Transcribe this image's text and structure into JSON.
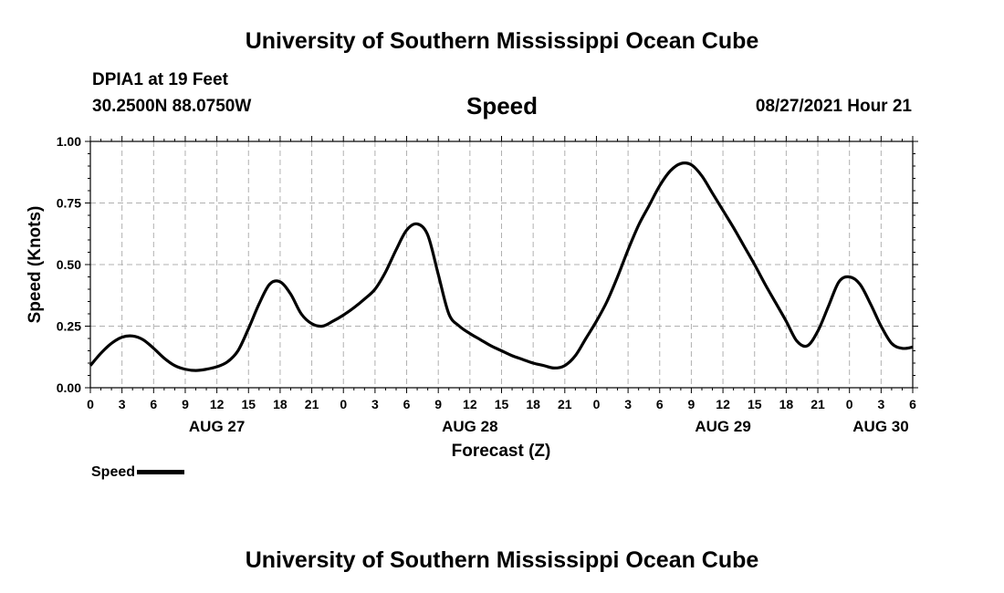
{
  "header": {
    "title": "University of Southern Mississippi Ocean Cube",
    "station": "DPIA1 at 19 Feet",
    "coordinates": "30.2500N  88.0750W",
    "timestamp": "08/27/2021 Hour 21"
  },
  "footer": {
    "title": "University of Southern Mississippi Ocean Cube"
  },
  "legend": {
    "label": "Speed"
  },
  "chart_data": {
    "type": "line",
    "title": "Speed",
    "xlabel": "Forecast (Z)",
    "ylabel": "Speed (Knots)",
    "xlim": [
      0,
      78
    ],
    "ylim": [
      0,
      1
    ],
    "grid": true,
    "legend_position": "bottom-left",
    "y_ticks": [
      "0.00",
      "0.25",
      "0.50",
      "0.75",
      "1.00"
    ],
    "x_tick_labels": [
      "0",
      "3",
      "6",
      "9",
      "12",
      "15",
      "18",
      "21",
      "0",
      "3",
      "6",
      "9",
      "12",
      "15",
      "18",
      "21",
      "0",
      "3",
      "6",
      "9",
      "12",
      "15",
      "18",
      "21",
      "0",
      "3",
      "6"
    ],
    "day_labels": [
      "AUG 27",
      "AUG 28",
      "AUG 29",
      "AUG 30"
    ],
    "line_color": "#000000",
    "series": [
      {
        "name": "Speed",
        "x": [
          0,
          1,
          2,
          3,
          4,
          5,
          6,
          7,
          8,
          9,
          10,
          11,
          12,
          13,
          14,
          15,
          16,
          17,
          18,
          19,
          20,
          21,
          22,
          23,
          24,
          25,
          26,
          27,
          28,
          29,
          30,
          31,
          32,
          33,
          34,
          35,
          36,
          37,
          38,
          39,
          40,
          41,
          42,
          43,
          44,
          45,
          46,
          47,
          48,
          49,
          50,
          51,
          52,
          53,
          54,
          55,
          56,
          57,
          58,
          59,
          60,
          61,
          62,
          63,
          64,
          65,
          66,
          67,
          68,
          69,
          70,
          71,
          72,
          73,
          74,
          75,
          76,
          77,
          78
        ],
        "values": [
          0.09,
          0.14,
          0.18,
          0.205,
          0.21,
          0.195,
          0.16,
          0.12,
          0.09,
          0.075,
          0.07,
          0.075,
          0.085,
          0.105,
          0.15,
          0.24,
          0.34,
          0.42,
          0.43,
          0.38,
          0.3,
          0.26,
          0.25,
          0.27,
          0.295,
          0.325,
          0.36,
          0.4,
          0.47,
          0.56,
          0.64,
          0.665,
          0.62,
          0.46,
          0.3,
          0.25,
          0.22,
          0.195,
          0.17,
          0.15,
          0.13,
          0.115,
          0.1,
          0.09,
          0.08,
          0.09,
          0.13,
          0.2,
          0.27,
          0.35,
          0.45,
          0.56,
          0.66,
          0.74,
          0.82,
          0.88,
          0.91,
          0.905,
          0.86,
          0.79,
          0.72,
          0.65,
          0.575,
          0.5,
          0.42,
          0.345,
          0.27,
          0.19,
          0.17,
          0.23,
          0.33,
          0.43,
          0.45,
          0.42,
          0.34,
          0.25,
          0.18,
          0.16,
          0.165
        ]
      }
    ]
  }
}
